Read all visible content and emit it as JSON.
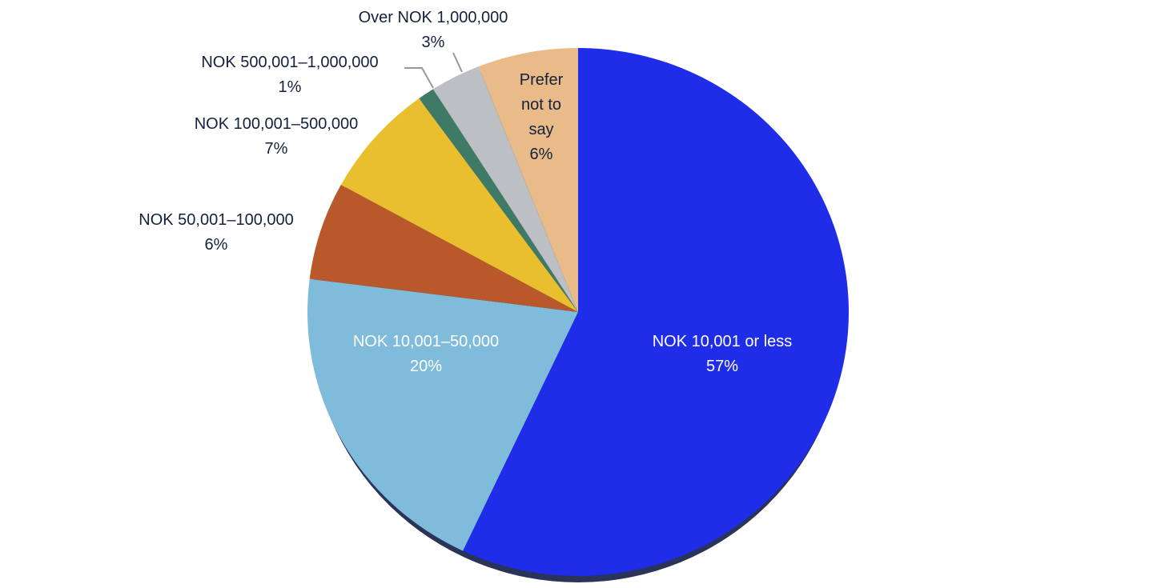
{
  "chart_data": {
    "type": "pie",
    "categories": [
      "NOK 10,001 or less",
      "NOK 10,001–50,000",
      "NOK 50,001–100,000",
      "NOK 100,001–500,000",
      "NOK 500,001–1,000,000",
      "Over NOK 1,000,000",
      "Prefer not to say"
    ],
    "values": [
      57,
      20,
      6,
      7,
      1,
      3,
      6
    ],
    "value_labels": [
      "57%",
      "20%",
      "6%",
      "7%",
      "1%",
      "3%",
      "6%"
    ],
    "colors": [
      "#1f2de8",
      "#7fbcdb",
      "#b8582b",
      "#e9bf2f",
      "#3f7a66",
      "#bcc0c4",
      "#e8bb88"
    ]
  }
}
